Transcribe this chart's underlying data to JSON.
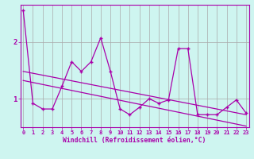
{
  "xlabel": "Windchill (Refroidissement éolien,°C)",
  "bg_color": "#cef5f0",
  "line_color": "#aa00aa",
  "grid_color": "#aaaaaa",
  "xticks": [
    0,
    1,
    2,
    3,
    4,
    5,
    6,
    7,
    8,
    9,
    10,
    11,
    12,
    13,
    14,
    15,
    16,
    17,
    18,
    19,
    20,
    21,
    22,
    23
  ],
  "yticks": [
    1,
    2
  ],
  "xlim": [
    -0.3,
    23.3
  ],
  "ylim": [
    0.5,
    2.65
  ],
  "data_y": [
    2.55,
    0.92,
    0.82,
    0.82,
    1.22,
    1.65,
    1.48,
    1.65,
    2.07,
    1.48,
    0.82,
    0.72,
    0.85,
    1.0,
    0.92,
    0.98,
    1.88,
    1.88,
    0.72,
    0.72,
    0.72,
    0.85,
    0.98,
    0.75
  ],
  "trend1": [
    1.48,
    0.72
  ],
  "trend2": [
    1.32,
    0.52
  ]
}
